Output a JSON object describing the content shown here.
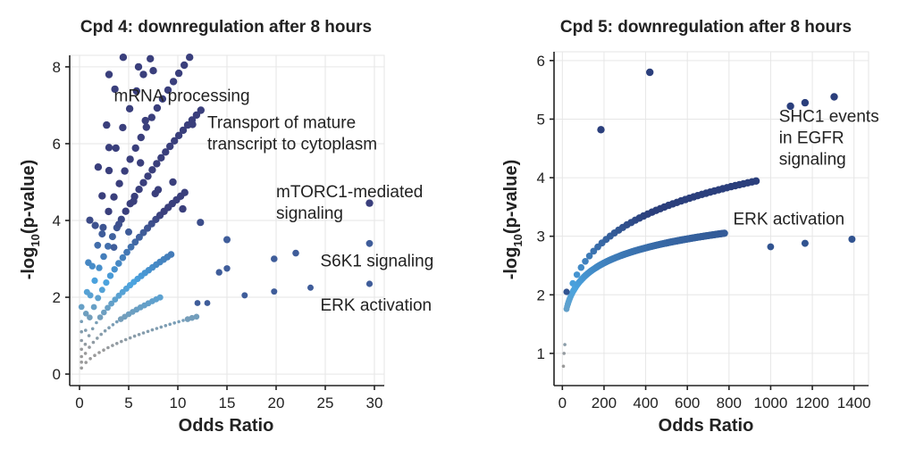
{
  "chart_data": [
    {
      "type": "scatter",
      "title": "Cpd 4: downregulation after 8 hours",
      "xlabel": "Odds Ratio",
      "ylabel": "-log10(p-value)",
      "ylabel_parts": [
        "-log",
        "10",
        "(p-value)"
      ],
      "xlim": [
        -1,
        31
      ],
      "ylim": [
        -0.3,
        8.3
      ],
      "xticks": [
        0,
        5,
        10,
        15,
        20,
        25,
        30
      ],
      "yticks": [
        0,
        2,
        4,
        6,
        8
      ],
      "color_scale": {
        "low": "#9a9a9a",
        "mid": "#4aa3df",
        "high": "#3a3f7c"
      },
      "annotations": [
        {
          "lines": [
            "mRNA processing"
          ],
          "x": 3.5,
          "y": 7.1
        },
        {
          "lines": [
            "Transport of mature",
            "transcript to cytoplasm"
          ],
          "x": 13.0,
          "y": 6.4
        },
        {
          "lines": [
            "mTORC1-mediated",
            "signaling"
          ],
          "x": 20.0,
          "y": 4.6
        },
        {
          "lines": [
            "S6K1 signaling"
          ],
          "x": 24.5,
          "y": 2.8
        },
        {
          "lines": [
            "ERK activation"
          ],
          "x": 24.5,
          "y": 1.65
        }
      ],
      "highlight_points": [
        {
          "x": 3.0,
          "y": 7.8
        },
        {
          "x": 6.0,
          "y": 8.0
        },
        {
          "x": 7.5,
          "y": 7.9
        },
        {
          "x": 6.7,
          "y": 6.6
        },
        {
          "x": 11.5,
          "y": 6.5
        },
        {
          "x": 3.0,
          "y": 5.9
        },
        {
          "x": 6.2,
          "y": 5.5
        },
        {
          "x": 9.5,
          "y": 5.0
        },
        {
          "x": 8.0,
          "y": 4.8
        },
        {
          "x": 7.7,
          "y": 4.7
        },
        {
          "x": 10.5,
          "y": 4.3
        },
        {
          "x": 29.5,
          "y": 4.45
        },
        {
          "x": 12.3,
          "y": 3.95
        },
        {
          "x": 15.0,
          "y": 3.5
        },
        {
          "x": 29.5,
          "y": 3.4
        },
        {
          "x": 22.0,
          "y": 3.15
        },
        {
          "x": 19.8,
          "y": 3.0
        },
        {
          "x": 14.2,
          "y": 2.65
        },
        {
          "x": 15.0,
          "y": 2.75
        },
        {
          "x": 23.5,
          "y": 2.25
        },
        {
          "x": 29.5,
          "y": 2.35
        },
        {
          "x": 19.8,
          "y": 2.15
        },
        {
          "x": 16.8,
          "y": 2.05
        },
        {
          "x": 13.0,
          "y": 1.85
        },
        {
          "x": 12.0,
          "y": 1.85
        },
        {
          "x": 2.3,
          "y": 3.65
        },
        {
          "x": 4.0,
          "y": 3.9
        },
        {
          "x": 5.5,
          "y": 4.5
        },
        {
          "x": 3.5,
          "y": 3.3
        },
        {
          "x": 5.0,
          "y": 3.7
        }
      ],
      "curves": [
        {
          "a": 4.6,
          "p": 0.5,
          "xmax": 11.0,
          "step": 0.85
        },
        {
          "a": 3.6,
          "p": 0.5,
          "xmax": 10.0,
          "step": 0.7
        },
        {
          "a": 2.9,
          "p": 0.5,
          "xmax": 11.5,
          "step": 0.55
        },
        {
          "a": 2.3,
          "p": 0.5,
          "xmax": 12.5,
          "step": 0.45
        },
        {
          "a": 1.7,
          "p": 0.5,
          "xmax": 11.0,
          "step": 0.42
        },
        {
          "a": 1.2,
          "p": 0.5,
          "xmax": 9.5,
          "step": 0.38
        },
        {
          "a": 0.82,
          "p": 0.5,
          "xmax": 8.5,
          "step": 0.4
        },
        {
          "a": 0.45,
          "p": 0.55,
          "xmax": 12.0,
          "step": 0.45
        }
      ]
    },
    {
      "type": "scatter",
      "title": "Cpd 5: downregulation after 8 hours",
      "xlabel": "Odds Ratio",
      "ylabel": "-log10(p-value)",
      "ylabel_parts": [
        "-log",
        "10",
        "(p-value)"
      ],
      "xlim": [
        -40,
        1470
      ],
      "ylim": [
        0.45,
        6.15
      ],
      "xticks": [
        0,
        200,
        400,
        600,
        800,
        1000,
        1200,
        1400
      ],
      "yticks": [
        1,
        2,
        3,
        4,
        5,
        6
      ],
      "color_scale": {
        "low": "#9a9a9a",
        "mid": "#4aa3df",
        "high": "#2b3f7c"
      },
      "annotations": [
        {
          "lines": [
            "SHC1 events",
            "in EGFR",
            "signaling"
          ],
          "x": 1040,
          "y": 4.95
        },
        {
          "lines": [
            "ERK activation"
          ],
          "x": 820,
          "y": 3.2
        }
      ],
      "highlight_points": [
        {
          "x": 420,
          "y": 5.8
        },
        {
          "x": 185,
          "y": 4.82
        },
        {
          "x": 1095,
          "y": 5.22
        },
        {
          "x": 1165,
          "y": 5.28
        },
        {
          "x": 1305,
          "y": 5.38
        },
        {
          "x": 20,
          "y": 2.05
        },
        {
          "x": 1000,
          "y": 2.82
        },
        {
          "x": 1165,
          "y": 2.88
        },
        {
          "x": 1390,
          "y": 2.95
        }
      ],
      "curves": [
        {
          "kind": "upper",
          "a": 0.7,
          "b": 1.6,
          "xmin": 50,
          "xmax": 930,
          "step": 20
        },
        {
          "kind": "lower",
          "a": 0.35,
          "b": 1.0,
          "xmin": 20,
          "xmax": 780,
          "step": 3.2
        }
      ]
    }
  ]
}
